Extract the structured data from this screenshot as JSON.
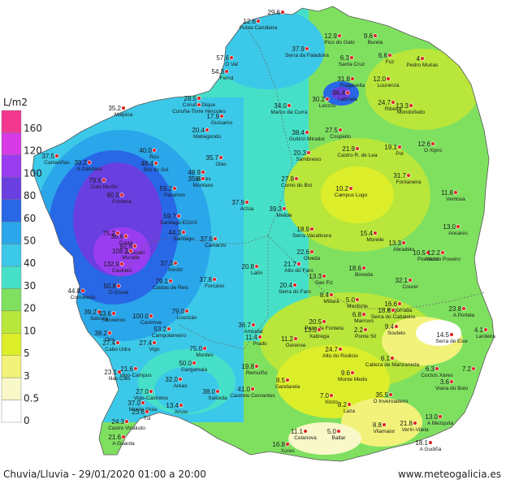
{
  "legend": {
    "unit": "L/m2",
    "labels": [
      "160",
      "120",
      "100",
      "80",
      "60",
      "50",
      "40",
      "30",
      "20",
      "10",
      "5",
      "3",
      "0.5",
      "0"
    ],
    "colors": [
      "#f2388f",
      "#d63be6",
      "#9a3df0",
      "#6a3fe0",
      "#2868e6",
      "#2aa6ea",
      "#3cc8e8",
      "#46e0c8",
      "#7fe060",
      "#b8e63a",
      "#dcee2a",
      "#f2f27a",
      "#f8f8c8",
      "#ffffff"
    ]
  },
  "stations": [
    {
      "v": "12.6",
      "n": "Punta Candieira"
    },
    {
      "v": "29.6",
      "n": ""
    },
    {
      "v": "12.9",
      "n": "Pico do Gato"
    },
    {
      "v": "9.6",
      "n": "Burela"
    },
    {
      "v": "37.9",
      "n": "Serra da Faladoira"
    },
    {
      "v": "6.3",
      "n": "Santa Cruz"
    },
    {
      "v": "6.6",
      "n": "Foz"
    },
    {
      "v": "4",
      "n": "Pedro Murias"
    },
    {
      "v": "57.6",
      "n": "O Val"
    },
    {
      "v": "54.3",
      "n": "Ferrol"
    },
    {
      "v": "31.8",
      "n": "Fragavella"
    },
    {
      "v": "12.0",
      "n": "Lourenzá"
    },
    {
      "v": "96.4",
      "n": "Labrada"
    },
    {
      "v": "30.2",
      "n": "Lanzós"
    },
    {
      "v": "28.5",
      "n": "Coruña-Dique"
    },
    {
      "v": "",
      "n": "Coruña-Torre Hércules"
    },
    {
      "v": "34.0",
      "n": "Marco da Curra"
    },
    {
      "v": "24.7",
      "n": "Ribeira"
    },
    {
      "v": "13.3",
      "n": "Mondoñedo"
    },
    {
      "v": "35.2",
      "n": "Malpica"
    },
    {
      "v": "17.9",
      "n": "Guísamo"
    },
    {
      "v": "20.4",
      "n": "Mabegondo"
    },
    {
      "v": "38.4",
      "n": "Guitiriz-Mirador"
    },
    {
      "v": "27.5",
      "n": "Cospeito"
    },
    {
      "v": "12.6",
      "n": "O Xipro"
    },
    {
      "v": "21.9",
      "n": "Castro R. de Lea"
    },
    {
      "v": "19.1",
      "n": "Pol"
    },
    {
      "v": "20.3",
      "n": "Sambreixo"
    },
    {
      "v": "37.5",
      "n": "Camariñas"
    },
    {
      "v": "39.2",
      "n": "A Gándara"
    },
    {
      "v": "40.0",
      "n": "Rus"
    },
    {
      "v": "48.4",
      "n": "Río do Sol"
    },
    {
      "v": "35.7",
      "n": "Olas"
    },
    {
      "v": "48.9",
      "n": "Borres"
    },
    {
      "v": "35.8",
      "n": "Montaos"
    },
    {
      "v": "27.8",
      "n": "Corno do Boi"
    },
    {
      "v": "31.7",
      "n": "Fontaneira"
    },
    {
      "v": "79.5",
      "n": "Coto Muíño"
    },
    {
      "v": "59.2",
      "n": "Paramos"
    },
    {
      "v": "10.2",
      "n": "Campus Lugo"
    },
    {
      "v": "11.8",
      "n": "Ventosa"
    },
    {
      "v": "90.5",
      "n": "Fonteca"
    },
    {
      "v": "37.9",
      "n": "Arzúa"
    },
    {
      "v": "39.3",
      "n": "Melide"
    },
    {
      "v": "59.7",
      "n": "Santiago-EOAS"
    },
    {
      "v": "44.3",
      "n": "Santiago"
    },
    {
      "v": "13.0",
      "n": "Ancares"
    },
    {
      "v": "18.9",
      "n": "Serra Vacalloura"
    },
    {
      "v": "15.4",
      "n": "Morelle"
    },
    {
      "v": "36.6",
      "n": "Costa"
    },
    {
      "v": "92.9",
      "n": "Vilaxoán"
    },
    {
      "v": "37.6",
      "n": "Camarzo"
    },
    {
      "v": "75.2",
      "n": ""
    },
    {
      "v": "13.3",
      "n": "Abradelo"
    },
    {
      "v": "108.2",
      "n": "Muralla"
    },
    {
      "v": "22.6",
      "n": "Olveda"
    },
    {
      "v": "10.5",
      "n": "Piornedo"
    },
    {
      "v": "12.2",
      "n": "Alto do Poseiro"
    },
    {
      "v": "132.9",
      "n": "Castrelo"
    },
    {
      "v": "37.3",
      "n": "Xerdiz"
    },
    {
      "v": "20.8",
      "n": "Lalín"
    },
    {
      "v": "21.7",
      "n": "Alto do Faro"
    },
    {
      "v": "18.6",
      "n": "Boveda"
    },
    {
      "v": "50.8",
      "n": "O Grove"
    },
    {
      "v": "79.1",
      "n": "Caldas de Reis"
    },
    {
      "v": "37.8",
      "n": "Forcarei"
    },
    {
      "v": "13.3",
      "n": "San Fiz"
    },
    {
      "v": "32.1",
      "n": "Courel"
    },
    {
      "v": "44.8",
      "n": "Corrubedo"
    },
    {
      "v": "20.4",
      "n": "Serra do Faro"
    },
    {
      "v": "8.4",
      "n": "Millará"
    },
    {
      "v": "5.0",
      "n": "Monforte"
    },
    {
      "v": "16.6",
      "n": "Xogorrada"
    },
    {
      "v": "39.2",
      "n": "Salvora"
    },
    {
      "v": "43.6",
      "n": "Sanxenxo"
    },
    {
      "v": "100.0",
      "n": "Castrove"
    },
    {
      "v": "79.0",
      "n": "Lourizán"
    },
    {
      "v": "6.8",
      "n": "Marroxo"
    },
    {
      "v": "18.6",
      "n": "Serra do Cabaleiro"
    },
    {
      "v": "23.8",
      "n": "A Portela"
    },
    {
      "v": "4.1",
      "n": "Lardeira"
    },
    {
      "v": "38.2",
      "n": "Ons"
    },
    {
      "v": "53.2",
      "n": "Campolameiro"
    },
    {
      "v": "36.7",
      "n": "Amiudal"
    },
    {
      "v": "20.5",
      "n": "Pazo de Fonteta"
    },
    {
      "v": "13.0",
      "n": "Xabrega"
    },
    {
      "v": "2.2",
      "n": "Ponte Sil"
    },
    {
      "v": "9.4",
      "n": "Soutelo"
    },
    {
      "v": "14.5",
      "n": "Serra de Eixe"
    },
    {
      "v": "27.4",
      "n": "Cabo Udra"
    },
    {
      "v": "27.4",
      "n": "Vigo"
    },
    {
      "v": "11.4",
      "n": "Prado"
    },
    {
      "v": "11.2",
      "n": "Ourense"
    },
    {
      "v": "24.7",
      "n": "Alto do Rodicio"
    },
    {
      "v": "23.1",
      "n": "Illas Cíes"
    },
    {
      "v": "75.0",
      "n": "Montes"
    },
    {
      "v": "19.8",
      "n": "Remuíño"
    },
    {
      "v": "6.1",
      "n": "Calleza de Manzaneda"
    },
    {
      "v": "21.6",
      "n": "Vigo-Campus"
    },
    {
      "v": "32.0",
      "n": "Areas"
    },
    {
      "v": "50.0",
      "n": "Gargamala"
    },
    {
      "v": "9.6",
      "n": "Monte Medo"
    },
    {
      "v": "3.6",
      "n": "Viana do Bolo"
    },
    {
      "v": "6.3",
      "n": "Corzos Xares"
    },
    {
      "v": "7.2",
      "n": ""
    },
    {
      "v": "8.5",
      "n": "Gandarela"
    },
    {
      "v": "27.0",
      "n": "Vigo-Castrelos"
    },
    {
      "v": "38.0",
      "n": "Salceda"
    },
    {
      "v": "41.0",
      "n": "Castrelo Cervantes"
    },
    {
      "v": "7.0",
      "n": "Xinzo"
    },
    {
      "v": "35.5",
      "n": "O Invernadeiro"
    },
    {
      "v": "37.0",
      "n": "Monte Aloia"
    },
    {
      "v": "13.4",
      "n": "Arcos"
    },
    {
      "v": "8.2",
      "n": "Laza"
    },
    {
      "v": "13.0",
      "n": "A Mezquita"
    },
    {
      "v": "23.6",
      "n": "Tui"
    },
    {
      "v": "24.3",
      "n": "Castro Vicaludo"
    },
    {
      "v": "21.6",
      "n": "A Guarda"
    },
    {
      "v": "11.1",
      "n": "Celanova"
    },
    {
      "v": "5.0",
      "n": "Baltar"
    },
    {
      "v": "8.8",
      "n": "Vilamaior"
    },
    {
      "v": "21.8",
      "n": "Verín-Vilela"
    },
    {
      "v": "16.8",
      "n": "Xures"
    },
    {
      "v": "18.1",
      "n": "A Gudiña"
    }
  ],
  "footer": {
    "left": "Chuvia/Lluvia - 29/01/2020 01:00 a 20:00",
    "right": "www.meteogalicia.es"
  }
}
